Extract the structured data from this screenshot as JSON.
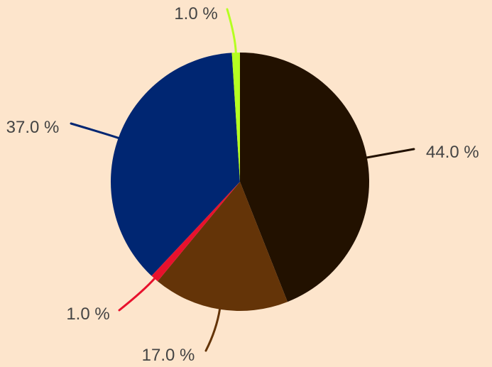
{
  "chart_data": {
    "type": "pie",
    "start_angle_deg": 0,
    "direction": "clockwise",
    "slices": [
      {
        "value": 44.0,
        "label": "44.0 %",
        "color": "#221100"
      },
      {
        "value": 17.0,
        "label": "17.0 %",
        "color": "#643408"
      },
      {
        "value": 1.0,
        "label": "1.0 %",
        "color": "#E8112D"
      },
      {
        "value": 37.0,
        "label": "37.0 %",
        "color": "#002672"
      },
      {
        "value": 1.0,
        "label": "1.0 %",
        "color": "#B5FF21"
      }
    ]
  }
}
